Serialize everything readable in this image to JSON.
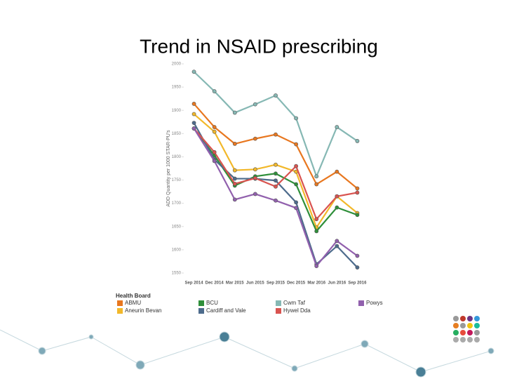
{
  "chart_data": {
    "type": "line",
    "title": "Trend in NSAID prescribing",
    "y_label": "ADD Quantity per 1000 STAR-PU's",
    "legend_title": "Health Board",
    "categories": [
      "Sep 2014",
      "Dec 2014",
      "Mar 2015",
      "Jun 2015",
      "Sep 2015",
      "Dec 2015",
      "Mar 2016",
      "Jun 2016",
      "Sep 2016"
    ],
    "ylim": [
      1550,
      2000
    ],
    "yticks": [
      1550,
      1600,
      1650,
      1700,
      1750,
      1800,
      1850,
      1900,
      1950,
      2000
    ],
    "series": [
      {
        "name": "ABMU",
        "color": "#e8771f",
        "values": [
          1914,
          1864,
          1828,
          1839,
          1848,
          1827,
          1741,
          1768,
          1732
        ]
      },
      {
        "name": "Aneurin Bevan",
        "color": "#f2b82a",
        "values": [
          1892,
          1854,
          1771,
          1773,
          1783,
          1768,
          1648,
          1715,
          1679
        ]
      },
      {
        "name": "BCU",
        "color": "#2f8f3a",
        "values": [
          1861,
          1803,
          1738,
          1758,
          1764,
          1741,
          1640,
          1691,
          1675
        ]
      },
      {
        "name": "Cardiff and Vale",
        "color": "#4d6b8c",
        "values": [
          1873,
          1794,
          1753,
          1753,
          1749,
          1702,
          1569,
          1608,
          1562
        ]
      },
      {
        "name": "Cwm Taf",
        "color": "#86b8b4",
        "values": [
          1983,
          1941,
          1895,
          1913,
          1932,
          1883,
          1758,
          1864,
          1834
        ]
      },
      {
        "name": "Hywel Dda",
        "color": "#d9534f",
        "values": [
          1861,
          1810,
          1742,
          1754,
          1736,
          1780,
          1666,
          1715,
          1723
        ]
      },
      {
        "name": "Powys",
        "color": "#9160ad",
        "values": [
          1861,
          1791,
          1708,
          1720,
          1706,
          1690,
          1565,
          1619,
          1587
        ]
      }
    ]
  }
}
